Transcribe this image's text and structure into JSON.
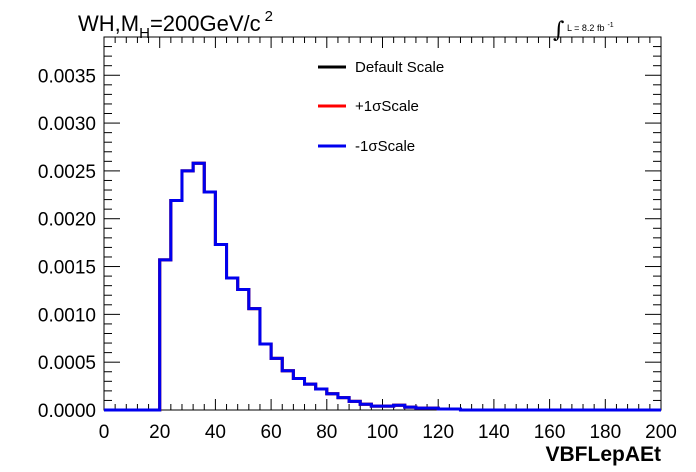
{
  "chart_data": {
    "type": "step-histogram",
    "title": {
      "prefix": "WH,M",
      "subscript": "H",
      "suffix": "=200GeV/c",
      "superscript": "2"
    },
    "luminosity": {
      "symbol": "∫",
      "text": "L = 8.2 fb",
      "superscript": "-1"
    },
    "xlabel": "VBFLepAEt",
    "xlim": [
      0,
      200
    ],
    "ylim": [
      0,
      0.0039
    ],
    "x_ticks": [
      0,
      20,
      40,
      60,
      80,
      100,
      120,
      140,
      160,
      180,
      200
    ],
    "x_tick_labels": [
      "0",
      "20",
      "40",
      "60",
      "80",
      "100",
      "120",
      "140",
      "160",
      "180",
      "200"
    ],
    "y_ticks": [
      0,
      0.0005,
      0.001,
      0.0015,
      0.002,
      0.0025,
      0.003,
      0.0035
    ],
    "y_tick_labels": [
      "0.0000",
      "0.0005",
      "0.0010",
      "0.0015",
      "0.0020",
      "0.0025",
      "0.0030",
      "0.0035"
    ],
    "bin_edges": [
      0,
      4,
      8,
      12,
      16,
      20,
      24,
      28,
      32,
      36,
      40,
      44,
      48,
      52,
      56,
      60,
      64,
      68,
      72,
      76,
      80,
      84,
      88,
      92,
      96,
      100,
      104,
      108,
      112,
      116,
      120,
      124,
      128,
      132,
      136,
      140,
      144,
      148,
      152,
      156,
      160,
      164,
      168,
      172,
      176,
      180,
      184,
      188,
      192,
      196,
      200
    ],
    "legend_placement": "top-center",
    "series": [
      {
        "name": "Default Scale",
        "color": "#000000",
        "values": [
          0,
          0,
          0,
          0,
          0,
          0.00157,
          0.00219,
          0.0025,
          0.00258,
          0.00228,
          0.00173,
          0.00138,
          0.00126,
          0.00106,
          0.00069,
          0.00054,
          0.00041,
          0.00033,
          0.00027,
          0.00022,
          0.00017,
          0.00013,
          9e-05,
          6e-05,
          4e-05,
          4e-05,
          5e-05,
          3e-05,
          2e-05,
          2e-05,
          1e-05,
          1e-05,
          0,
          0,
          0,
          0,
          0,
          0,
          0,
          0,
          0,
          0,
          0,
          0,
          0,
          0,
          0,
          0,
          0,
          0
        ]
      },
      {
        "name": "+1σScale",
        "color": "#ff0000",
        "values": [
          0,
          0,
          0,
          0,
          0,
          0.00157,
          0.00219,
          0.0025,
          0.00258,
          0.00228,
          0.00173,
          0.00138,
          0.00126,
          0.00106,
          0.00069,
          0.00054,
          0.00041,
          0.00033,
          0.00027,
          0.00022,
          0.00017,
          0.00013,
          9e-05,
          6e-05,
          4e-05,
          4e-05,
          5e-05,
          3e-05,
          2e-05,
          2e-05,
          1e-05,
          1e-05,
          0,
          0,
          0,
          0,
          0,
          0,
          0,
          0,
          0,
          0,
          0,
          0,
          0,
          0,
          0,
          0,
          0,
          0
        ]
      },
      {
        "name": "-1σScale",
        "color": "#0000ee",
        "values": [
          0,
          0,
          0,
          0,
          0,
          0.00157,
          0.00219,
          0.0025,
          0.00258,
          0.00228,
          0.00173,
          0.00138,
          0.00126,
          0.00106,
          0.00069,
          0.00054,
          0.00041,
          0.00033,
          0.00027,
          0.00022,
          0.00017,
          0.00013,
          9e-05,
          6e-05,
          4e-05,
          4e-05,
          5e-05,
          3e-05,
          2e-05,
          2e-05,
          1e-05,
          1e-05,
          0,
          0,
          0,
          0,
          0,
          0,
          0,
          0,
          0,
          0,
          0,
          0,
          0,
          0,
          0,
          0,
          0,
          0
        ]
      }
    ]
  }
}
